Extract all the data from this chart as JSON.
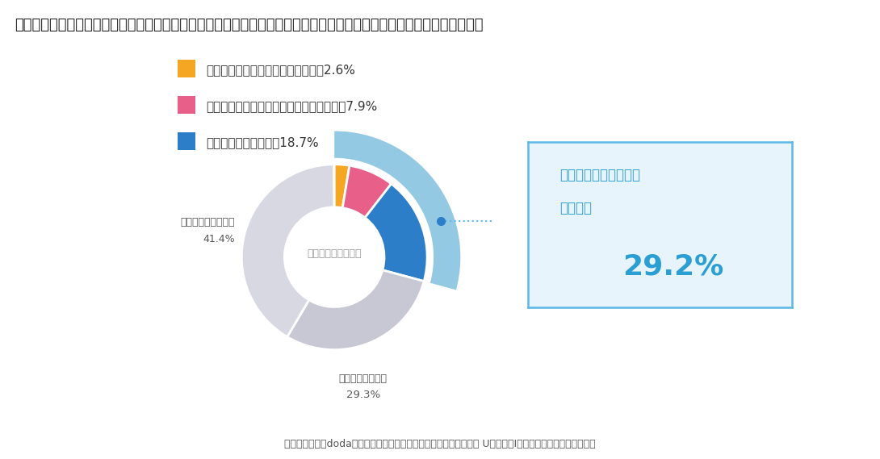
{
  "title": "新型コロナ感染拡大の影響で、あなたは故郷や地方へ移住して仕事をすることに対してどの程度興味を持っていますか。",
  "footnote": "転職サービス「doda」、コロナで高まる地方への移住転職ニーズ！ Uターン・Iターン転職を望む理由とは？",
  "slices": [
    2.6,
    7.9,
    18.7,
    29.3,
    41.4
  ],
  "slice_colors": [
    "#F5A623",
    "#E8608A",
    "#2C7EC8",
    "#C8C8D4",
    "#D8D8E2"
  ],
  "slice_labels": [
    "興味があり、すでに移住している",
    "興味があり、前向きに検討したいと思う",
    "まあまあ興味がある",
    "あまり興味がない",
    "まったく興味がない"
  ],
  "slice_pcts_display": [
    "2.6",
    "7.9",
    "18.7",
    "29.3%",
    "41.4%"
  ],
  "center_text": "地方移住に興味は？",
  "outer_arc_color": "#89C4E1",
  "box_title1": "地方移住に興味がある",
  "box_title2": "人の割合",
  "box_pct": "29.2%",
  "box_color": "#E8F4FB",
  "box_border_color": "#5BB8E8",
  "background_color": "#FFFFFF",
  "dot_color": "#2C7EC8",
  "dotted_line_color": "#5BB8E8"
}
